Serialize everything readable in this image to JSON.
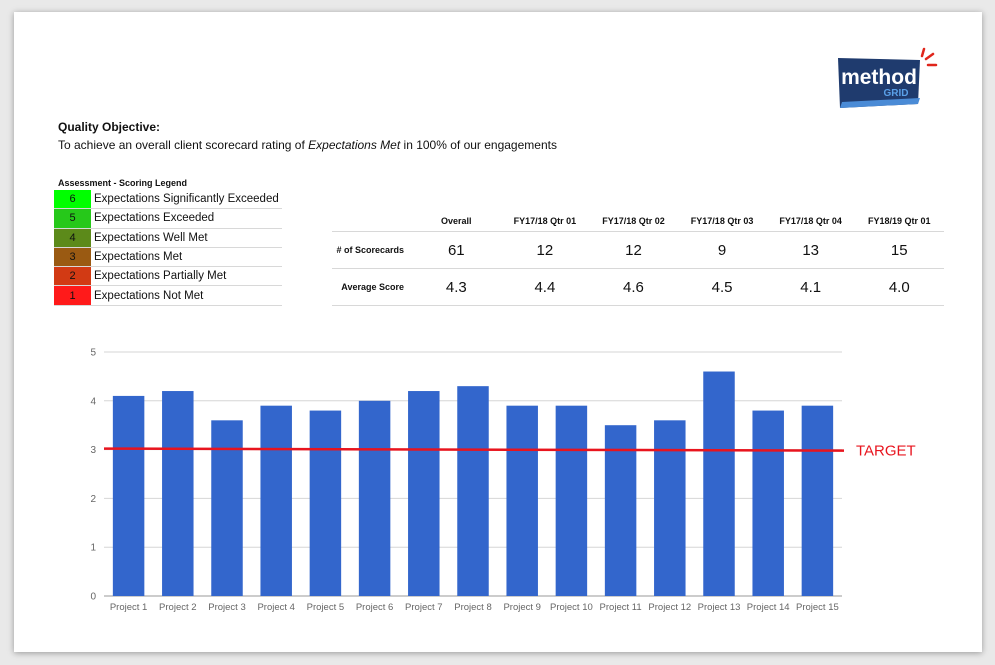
{
  "objective": {
    "title": "Quality Objective:",
    "text_before": "To achieve an overall client scorecard rating of ",
    "text_em": "Expectations Met",
    "text_after": " in 100% of our engagements"
  },
  "logo": {
    "line1": "method",
    "line2": "GRID",
    "color": "#1f3b6e",
    "accent": "#e0251b"
  },
  "legend": {
    "title": "Assessment - Scoring Legend",
    "items": [
      {
        "score": "6",
        "label": "Expectations Significantly Exceeded",
        "color": "#00ff00"
      },
      {
        "score": "5",
        "label": "Expectations Exceeded",
        "color": "#26c81a"
      },
      {
        "score": "4",
        "label": "Expectations Well Met",
        "color": "#5c8a1a"
      },
      {
        "score": "3",
        "label": "Expectations Met",
        "color": "#9a5a12"
      },
      {
        "score": "2",
        "label": "Expectations Partially Met",
        "color": "#d23a14"
      },
      {
        "score": "1",
        "label": "Expectations Not Met",
        "color": "#ff1a1a"
      }
    ]
  },
  "stats": {
    "headers": [
      "Overall",
      "FY17/18 Qtr 01",
      "FY17/18 Qtr 02",
      "FY17/18 Qtr 03",
      "FY17/18 Qtr 04",
      "FY18/19 Qtr 01"
    ],
    "rows": [
      {
        "label": "# of Scorecards",
        "values": [
          "61",
          "12",
          "12",
          "9",
          "13",
          "15"
        ]
      },
      {
        "label": "Average Score",
        "values": [
          "4.3",
          "4.4",
          "4.6",
          "4.5",
          "4.1",
          "4.0"
        ]
      }
    ]
  },
  "chart_data": {
    "type": "bar",
    "categories": [
      "Project 1",
      "Project 2",
      "Project 3",
      "Project 4",
      "Project 5",
      "Project 6",
      "Project 7",
      "Project 8",
      "Project 9",
      "Project 10",
      "Project 11",
      "Project 12",
      "Project 13",
      "Project 14",
      "Project 15"
    ],
    "values": [
      4.1,
      4.2,
      3.6,
      3.9,
      3.8,
      4.0,
      4.2,
      4.3,
      3.9,
      3.9,
      3.5,
      3.6,
      4.6,
      3.8,
      3.9
    ],
    "ylim": [
      0,
      5
    ],
    "yticks": [
      "0",
      "1",
      "2",
      "3",
      "4",
      "5"
    ],
    "grid": true,
    "bar_color": "#3366cc",
    "target": {
      "value": 3,
      "label": "TARGET",
      "color": "#e8141e"
    }
  }
}
